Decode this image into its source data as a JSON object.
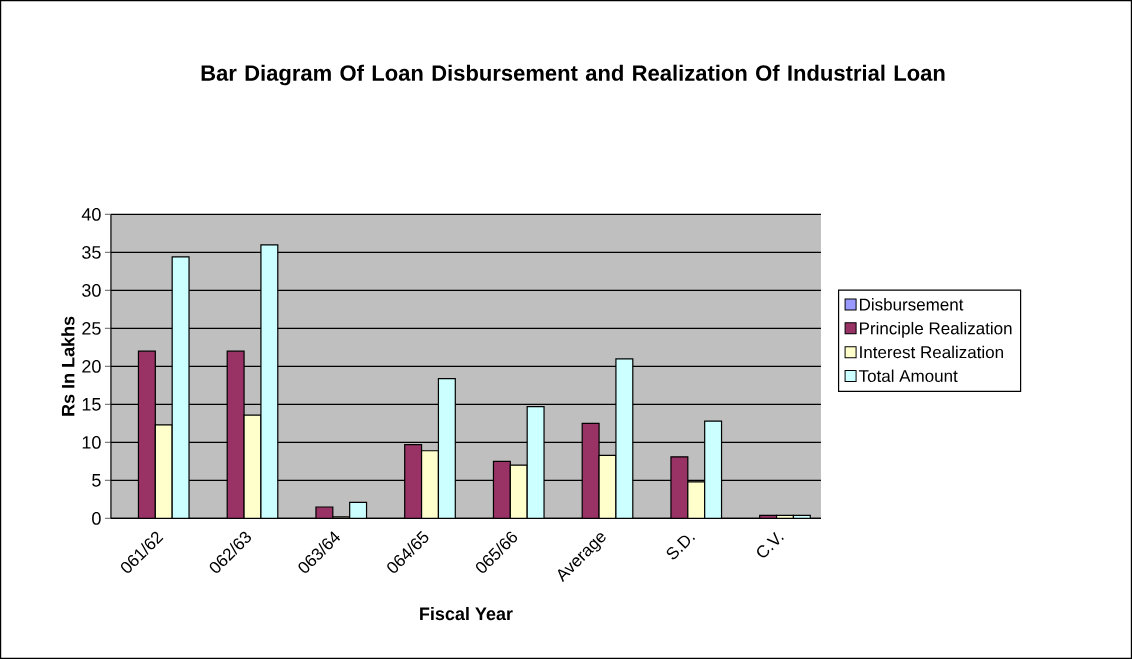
{
  "chart_data": {
    "type": "bar",
    "title": "Bar Diagram Of Loan Disbursement and Realization Of Industrial Loan",
    "xlabel": "Fiscal Year",
    "ylabel": "Rs In Lakhs",
    "categories": [
      "061/62",
      "062/63",
      "063/64",
      "064/65",
      "065/66",
      "Average",
      "S.D.",
      "C.V."
    ],
    "series": [
      {
        "name": "Disbursement",
        "color": "#9999ff",
        "values": [
          null,
          null,
          null,
          null,
          null,
          null,
          null,
          null
        ]
      },
      {
        "name": "Principle Realization",
        "color": "#993366",
        "values": [
          22.0,
          22.0,
          1.5,
          9.7,
          7.5,
          12.5,
          8.1,
          0.4
        ]
      },
      {
        "name": "Interest Realization",
        "color": "#ffffcc",
        "values": [
          12.3,
          13.6,
          0.2,
          8.9,
          7.0,
          8.3,
          4.8,
          0.4
        ]
      },
      {
        "name": "Total  Amount",
        "color": "#ccffff",
        "values": [
          34.4,
          36.0,
          2.1,
          18.4,
          14.7,
          21.0,
          12.8,
          0.4
        ]
      }
    ],
    "ylim": [
      0,
      40
    ],
    "yticks": [
      0,
      5,
      10,
      15,
      20,
      25,
      30,
      35,
      40
    ],
    "grid": "y",
    "legend": "right"
  }
}
